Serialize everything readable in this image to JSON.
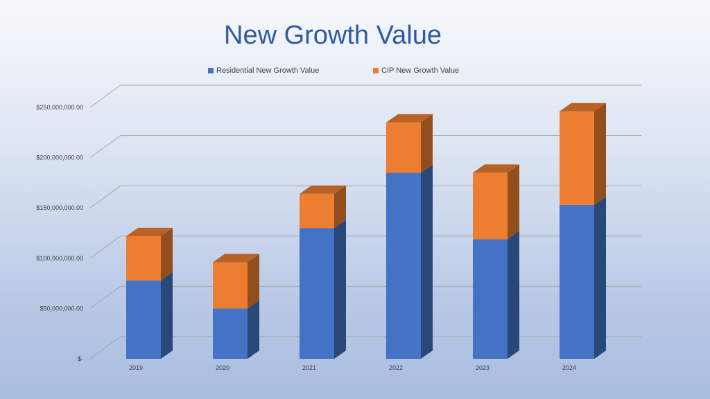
{
  "chart_data": {
    "type": "bar",
    "stacked": true,
    "three_d": true,
    "title": "New Growth Value",
    "categories": [
      "2019",
      "2020",
      "2021",
      "2022",
      "2023",
      "2024"
    ],
    "series": [
      {
        "name": "Residential New Growth Value",
        "color": "#4472c4",
        "values": [
          78000000,
          50000000,
          130000000,
          185000000,
          119000000,
          153000000
        ]
      },
      {
        "name": "CIP New Growth Value",
        "color": "#ed7d31",
        "values": [
          44000000,
          46000000,
          34000000,
          50000000,
          66000000,
          93000000
        ]
      }
    ],
    "y_ticks": [
      {
        "value": 0,
        "label": "$-"
      },
      {
        "value": 50000000,
        "label": "$50,000,000.00"
      },
      {
        "value": 100000000,
        "label": "$100,000,000.00"
      },
      {
        "value": 150000000,
        "label": "$150,000,000.00"
      },
      {
        "value": 200000000,
        "label": "$200,000,000.00"
      },
      {
        "value": 250000000,
        "label": "$250,000,000.00"
      }
    ],
    "ylim": [
      0,
      250000000
    ],
    "grid": true,
    "legend_position": "top"
  }
}
